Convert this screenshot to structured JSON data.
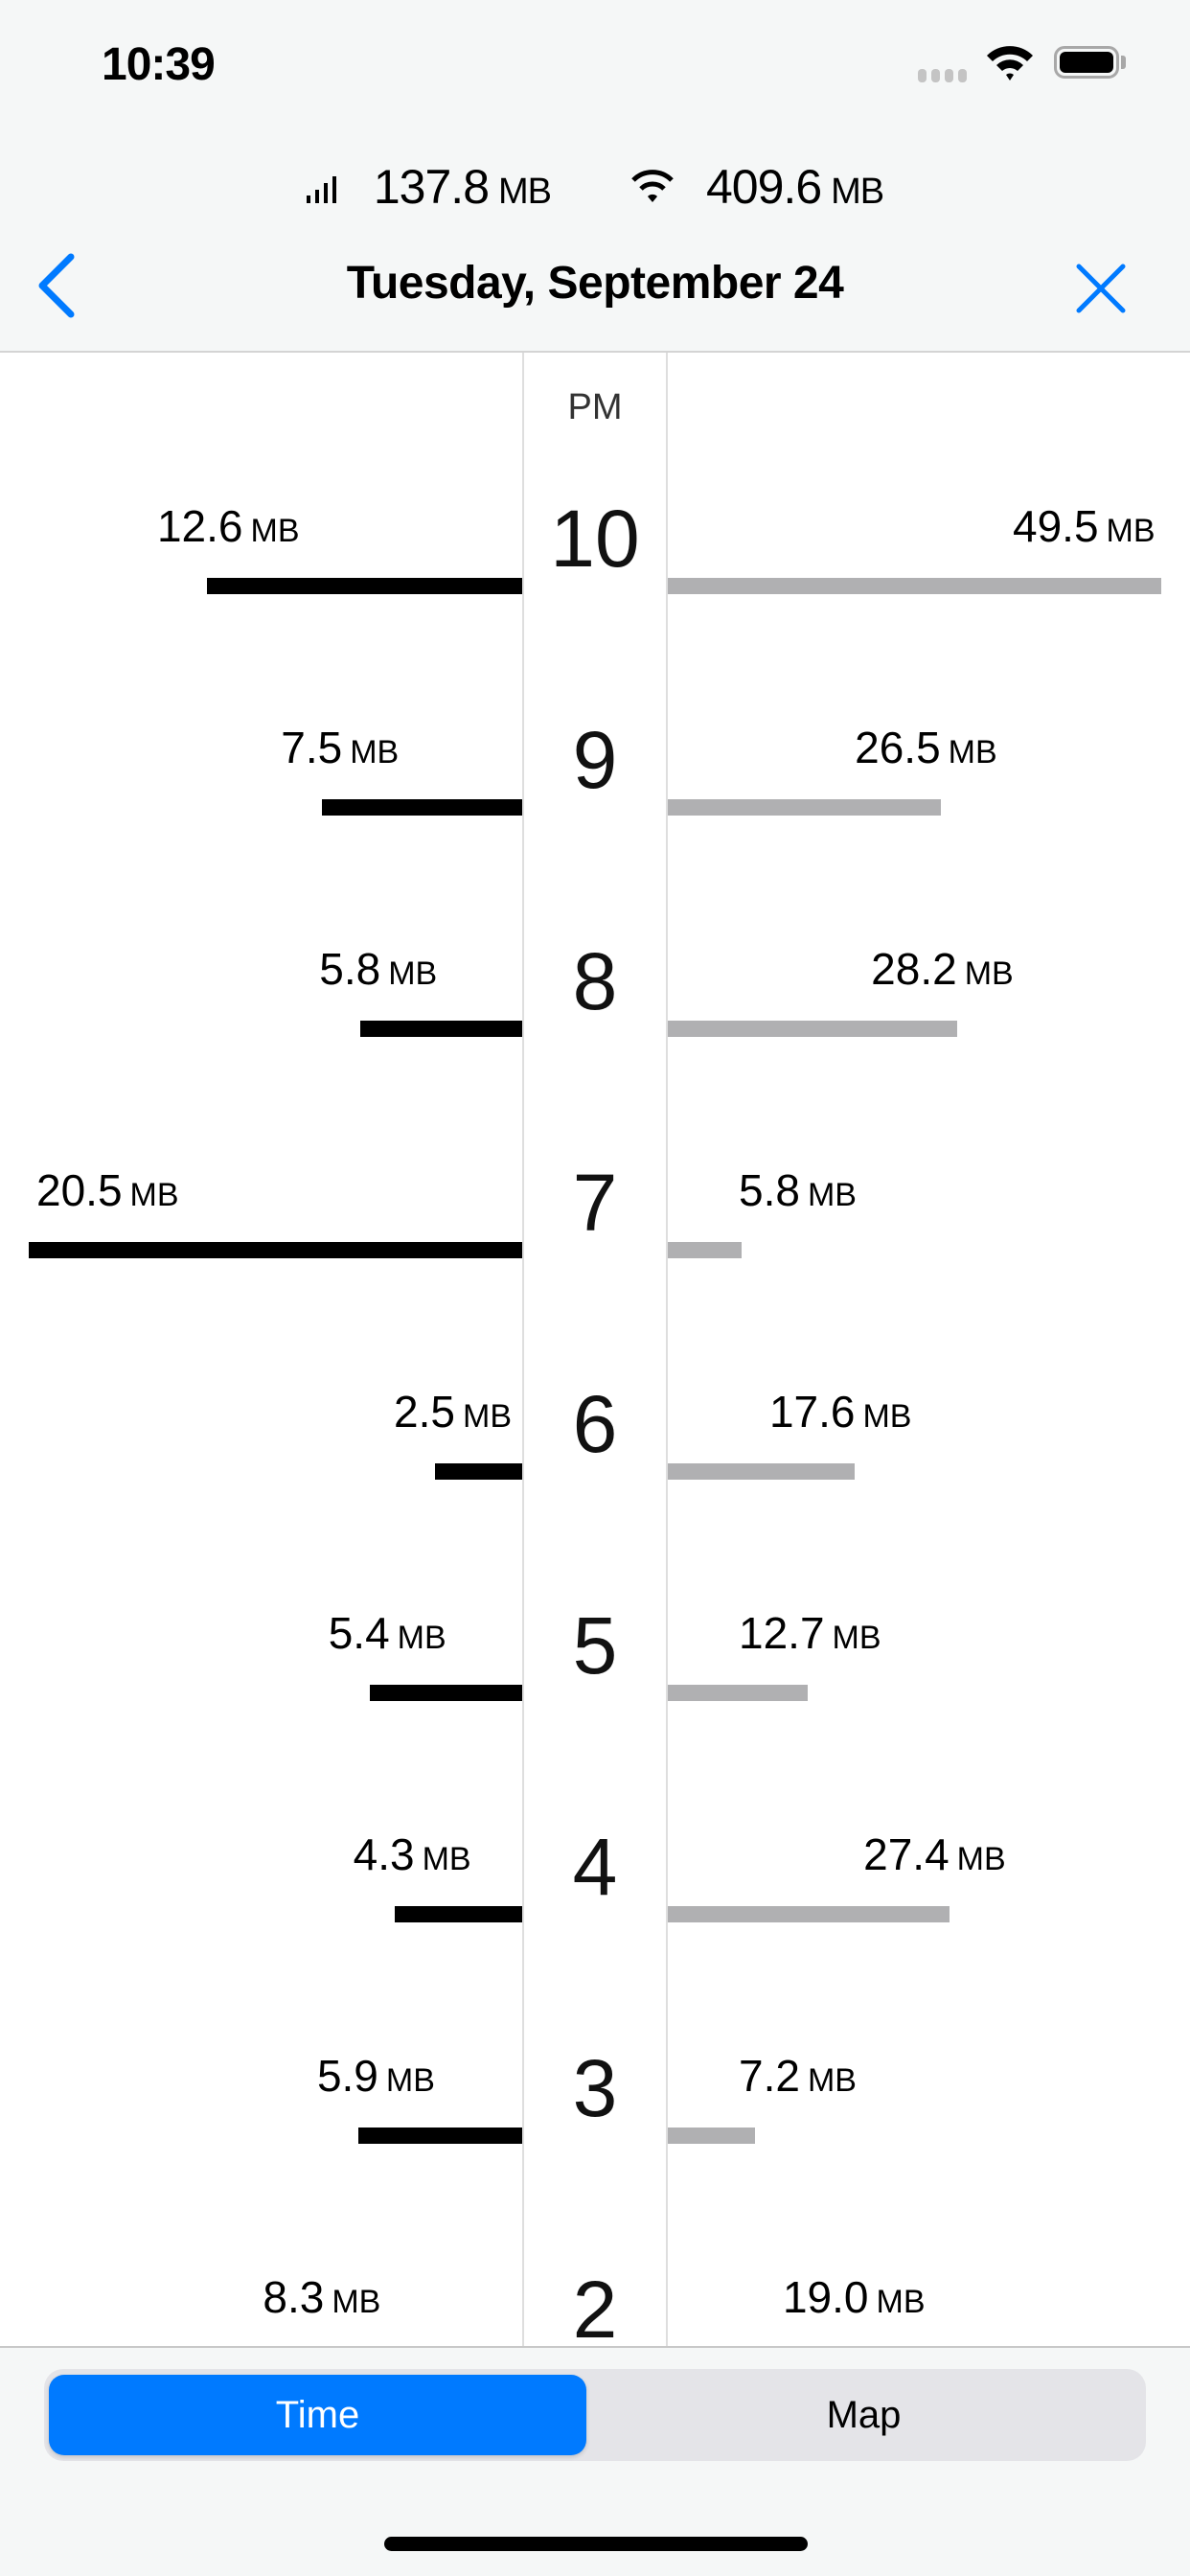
{
  "status_bar": {
    "time": "10:39",
    "icons": [
      "cellular-dots-icon",
      "wifi-icon",
      "battery-icon"
    ]
  },
  "totals": {
    "cellular": {
      "icon": "cellular-signal-icon",
      "value": "137.8",
      "unit": "MB"
    },
    "wifi": {
      "icon": "wifi-icon",
      "value": "409.6",
      "unit": "MB"
    }
  },
  "nav": {
    "title": "Tuesday, September 24",
    "back_icon": "chevron-left-icon",
    "close_icon": "close-icon"
  },
  "colors": {
    "accent": "#007aff",
    "cellular_bar": "#000000",
    "wifi_bar": "#b0b0b2"
  },
  "timeline": {
    "period": "PM",
    "unit": "MB",
    "rows": [
      {
        "hour": "10",
        "cellular": 12.6,
        "wifi": 49.5
      },
      {
        "hour": "9",
        "cellular": 7.5,
        "wifi": 26.5
      },
      {
        "hour": "8",
        "cellular": 5.8,
        "wifi": 28.2
      },
      {
        "hour": "7",
        "cellular": 20.5,
        "wifi": 5.8
      },
      {
        "hour": "6",
        "cellular": 2.5,
        "wifi": 17.6
      },
      {
        "hour": "5",
        "cellular": 5.4,
        "wifi": 12.7
      },
      {
        "hour": "4",
        "cellular": 4.3,
        "wifi": 27.4
      },
      {
        "hour": "3",
        "cellular": 5.9,
        "wifi": 7.2
      },
      {
        "hour": "2",
        "cellular": 8.3,
        "wifi": 19.0
      }
    ]
  },
  "segmented": {
    "options": [
      "Time",
      "Map"
    ],
    "selected": "Time"
  }
}
